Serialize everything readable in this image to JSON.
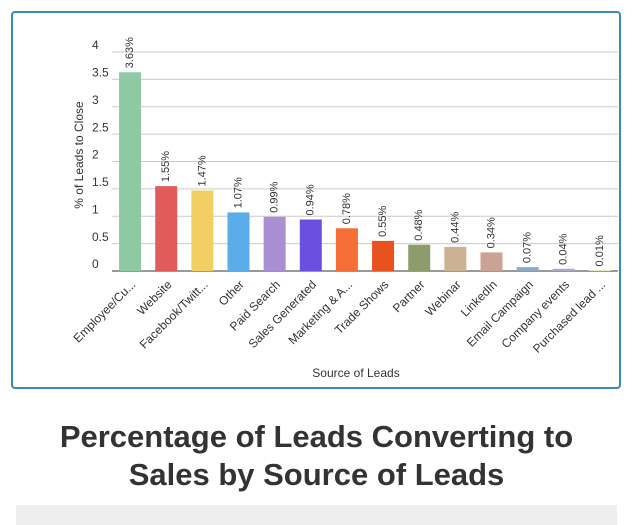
{
  "chart_data": {
    "type": "bar",
    "title": "Percentage of Leads Converting to Sales by Source of Leads",
    "x_label": "Source of Leads",
    "y_label": "% of Leads to Close",
    "categories": [
      "Employee/Cu...",
      "Website",
      "Facebook/Twitt...",
      "Other",
      "Paid Search",
      "Sales Generated",
      "Marketing & A...",
      "Trade Shows",
      "Partner",
      "Webinar",
      "LinkedIn",
      "Email Campaign",
      "Company events",
      "Purchased lead ..."
    ],
    "values": [
      3.63,
      1.55,
      1.47,
      1.07,
      0.99,
      0.94,
      0.78,
      0.55,
      0.48,
      0.44,
      0.34,
      0.07,
      0.04,
      0.01
    ],
    "value_labels": [
      "3.63%",
      "1.55%",
      "1.47%",
      "1.07%",
      "0.99%",
      "0.94%",
      "0.78%",
      "0.55%",
      "0.48%",
      "0.44%",
      "0.34%",
      "0.07%",
      "0.04%",
      "0.01%"
    ],
    "colors": [
      "#8ec9a3",
      "#e05b5b",
      "#f2cf63",
      "#5badea",
      "#a98fd1",
      "#6b4fe0",
      "#f56e35",
      "#e8521f",
      "#8e9b6b",
      "#cab292",
      "#cba396",
      "#8ea8c6",
      "#a9a9c6",
      "#d6cd8b"
    ],
    "ylim": [
      0,
      4
    ],
    "yticks": [
      0,
      0.5,
      1,
      1.5,
      2,
      2.5,
      3,
      3.5,
      4
    ],
    "grid": true
  }
}
